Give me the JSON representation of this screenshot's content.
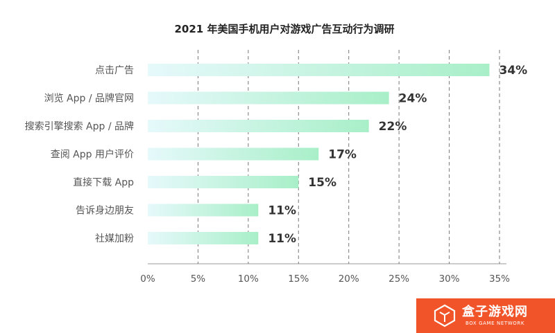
{
  "chart_data": {
    "type": "bar",
    "orientation": "horizontal",
    "title": "2021 年美国手机用户对游戏广告互动行为调研",
    "categories": [
      "点击广告",
      "浏览 App / 品牌官网",
      "搜索引擎搜索 App / 品牌",
      "查阅 App 用户评价",
      "直接下载 App",
      "告诉身边朋友",
      "社媒加粉"
    ],
    "values": [
      34,
      24,
      22,
      17,
      15,
      11,
      11
    ],
    "value_labels": [
      "34%",
      "24%",
      "22%",
      "17%",
      "15%",
      "11%",
      "11%"
    ],
    "xlim": [
      0,
      35
    ],
    "xticks": [
      0,
      5,
      10,
      15,
      20,
      25,
      30,
      35
    ],
    "xtick_labels": [
      "0%",
      "5%",
      "10%",
      "15%",
      "20%",
      "25%",
      "30%",
      "35%"
    ],
    "grid": true,
    "bar_gradient": [
      "#e6f9fb",
      "#a8efc8"
    ]
  },
  "logo": {
    "name_cn": "盒子游戏网",
    "name_en": "BOX GAME NETWORK"
  }
}
